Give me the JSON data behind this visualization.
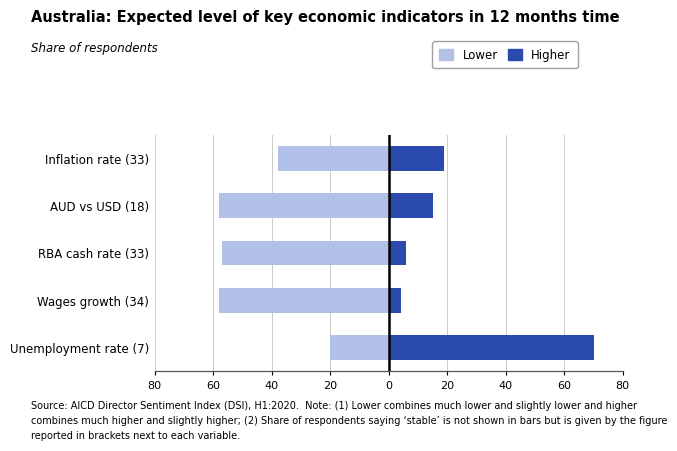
{
  "title": "Australia: Expected level of key economic indicators in 12 months time",
  "subtitle": "Share of respondents",
  "categories": [
    "Inflation rate (33)",
    "AUD vs USD (18)",
    "RBA cash rate (33)",
    "Wages growth (34)",
    "Unemployment rate (7)"
  ],
  "lower_values": [
    -38,
    -58,
    -57,
    -58,
    -20
  ],
  "higher_values": [
    19,
    15,
    6,
    4,
    70
  ],
  "lower_color": "#b3c0e8",
  "higher_color": "#2b4aad",
  "xlim": [
    -80,
    80
  ],
  "xticks": [
    -80,
    -60,
    -40,
    -20,
    0,
    20,
    40,
    60,
    80
  ],
  "xticklabels": [
    "80",
    "60",
    "40",
    "20",
    "0",
    "20",
    "40",
    "60",
    "80"
  ],
  "footnote_line1": "Source: AICD Director Sentiment Index (DSI), H1:2020.  Note: (1) Lower combines much lower and slightly lower and higher",
  "footnote_line2": "combines much higher and slightly higher; (2) Share of respondents saying ‘stable’ is not shown in bars but is given by the figure",
  "footnote_line3": "reported in brackets next to each variable.",
  "legend_lower_label": "Lower",
  "legend_higher_label": "Higher",
  "background_color": "#ffffff",
  "bar_height": 0.52
}
